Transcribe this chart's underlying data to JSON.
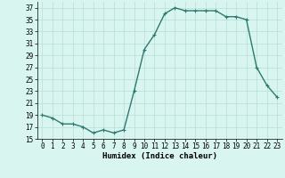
{
  "xlabel": "Humidex (Indice chaleur)",
  "x": [
    0,
    1,
    2,
    3,
    4,
    5,
    6,
    7,
    8,
    9,
    10,
    11,
    12,
    13,
    14,
    15,
    16,
    17,
    18,
    19,
    20,
    21,
    22,
    23
  ],
  "y": [
    19,
    18.5,
    17.5,
    17.5,
    17,
    16,
    16.5,
    16,
    16.5,
    23,
    30,
    32.5,
    36,
    37,
    36.5,
    36.5,
    36.5,
    36.5,
    35.5,
    35.5,
    35,
    27,
    24,
    22
  ],
  "line_color": "#2d7a6e",
  "marker": "+",
  "bg_color": "#d8f5f0",
  "grid_color": "#b8ddd8",
  "ylim": [
    15,
    38
  ],
  "yticks": [
    15,
    17,
    19,
    21,
    23,
    25,
    27,
    29,
    31,
    33,
    35,
    37
  ],
  "xlim": [
    -0.5,
    23.5
  ],
  "xticks": [
    0,
    1,
    2,
    3,
    4,
    5,
    6,
    7,
    8,
    9,
    10,
    11,
    12,
    13,
    14,
    15,
    16,
    17,
    18,
    19,
    20,
    21,
    22,
    23
  ],
  "xlabel_fontsize": 6.5,
  "tick_fontsize": 5.5,
  "linewidth": 1.0
}
